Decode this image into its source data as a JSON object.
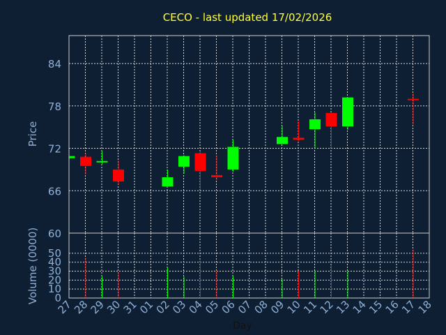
{
  "chart_data": {
    "type": "candlestick",
    "title": "CECO - last updated 17/02/2026",
    "xlabel": "Day",
    "price_panel": {
      "ylabel": "Price",
      "ylim": [
        60,
        84
      ],
      "yticks": [
        "60",
        "66",
        "72",
        "78",
        "84"
      ],
      "grid": true
    },
    "volume_panel": {
      "ylabel": "Volume (0000)",
      "ylim": [
        0,
        60
      ],
      "yticks": [
        "0",
        "10",
        "20",
        "30",
        "40",
        "50"
      ],
      "grid": true
    },
    "x_tick_labels": [
      "27",
      "28",
      "29",
      "30",
      "31",
      "01",
      "02",
      "03",
      "04",
      "05",
      "06",
      "07",
      "08",
      "09",
      "10",
      "11",
      "12",
      "13",
      "14",
      "15",
      "16",
      "17",
      "18"
    ],
    "candles": [
      {
        "day": "27",
        "open": 70.6,
        "close": 70.9,
        "high": 71.0,
        "low": 70.5,
        "volume": 0
      },
      {
        "day": "28",
        "open": 70.8,
        "close": 69.5,
        "high": 71.3,
        "low": 68.3,
        "volume": 45
      },
      {
        "day": "29",
        "open": 70.1,
        "close": 70.2,
        "high": 71.6,
        "low": 69.8,
        "volume": 24
      },
      {
        "day": "30",
        "open": 69.0,
        "close": 67.3,
        "high": 70.3,
        "low": 66.8,
        "volume": 29
      },
      {
        "day": "02",
        "open": 66.6,
        "close": 67.9,
        "high": 69.0,
        "low": 66.6,
        "volume": 34
      },
      {
        "day": "03",
        "open": 69.4,
        "close": 70.9,
        "high": 71.0,
        "low": 68.4,
        "volume": 24
      },
      {
        "day": "04",
        "open": 71.3,
        "close": 68.8,
        "high": 71.5,
        "low": 66.1,
        "volume": 42
      },
      {
        "day": "05",
        "open": 68.2,
        "close": 67.9,
        "high": 71.0,
        "low": 67.5,
        "volume": 31
      },
      {
        "day": "06",
        "open": 69.0,
        "close": 72.2,
        "high": 73.2,
        "low": 68.7,
        "volume": 25
      },
      {
        "day": "09",
        "open": 72.6,
        "close": 73.6,
        "high": 75.2,
        "low": 72.6,
        "volume": 21
      },
      {
        "day": "10",
        "open": 73.5,
        "close": 73.2,
        "high": 75.8,
        "low": 73.0,
        "volume": 30
      },
      {
        "day": "11",
        "open": 74.7,
        "close": 76.1,
        "high": 77.1,
        "low": 72.0,
        "volume": 30
      },
      {
        "day": "12",
        "open": 77.0,
        "close": 75.1,
        "high": 77.1,
        "low": 72.0,
        "volume": 37
      },
      {
        "day": "13",
        "open": 75.1,
        "close": 79.2,
        "high": 79.2,
        "low": 74.6,
        "volume": 30
      },
      {
        "day": "17",
        "open": 79.0,
        "close": 78.9,
        "high": 79.8,
        "low": 75.4,
        "volume": 54
      }
    ]
  },
  "colors": {
    "background": "#0f1f33",
    "grid": "#d8d8d8",
    "axis_text": "#8fb0d6",
    "title": "#ffff33",
    "up": "#00ff00",
    "down": "#ff0000"
  }
}
